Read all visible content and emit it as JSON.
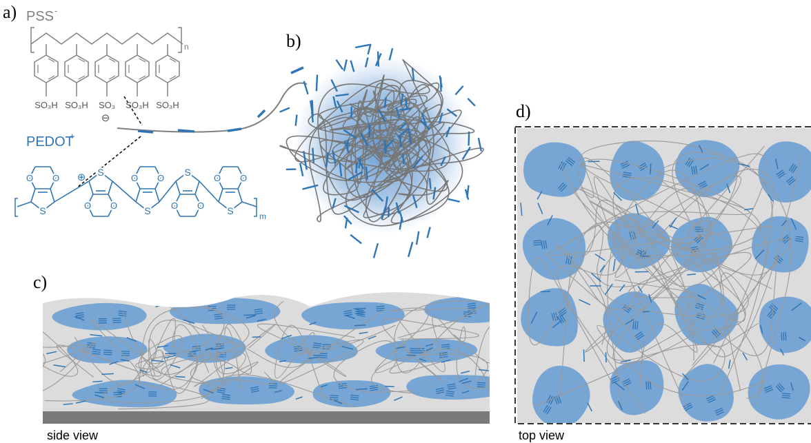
{
  "panels": {
    "a": {
      "label": "a)",
      "pss": {
        "name": "PSS",
        "charge": "-",
        "repeat": "n",
        "groups": [
          "SO₃H",
          "SO₃H",
          "SO₃",
          "SO₃H",
          "SO₃H"
        ],
        "anion": "⊖"
      },
      "pedot": {
        "name": "PEDOT",
        "charge": "+",
        "repeat": "m",
        "cation": "⊕",
        "sulfur": [
          "S",
          "S",
          "S",
          "S",
          "S"
        ],
        "oxygen": [
          "O",
          "O",
          "O",
          "O",
          "O",
          "O",
          "O",
          "O",
          "O",
          "O"
        ]
      }
    },
    "b": {
      "label": "b)"
    },
    "c": {
      "label": "c)",
      "caption": "side view"
    },
    "d": {
      "label": "d)",
      "caption": "top view"
    }
  }
}
